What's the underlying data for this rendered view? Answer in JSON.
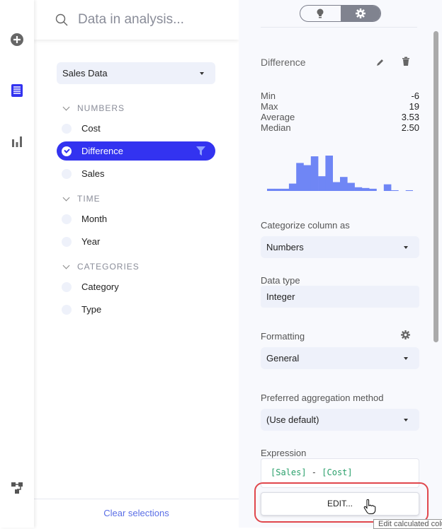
{
  "search": {
    "placeholder": "Data in analysis..."
  },
  "source": {
    "selected": "Sales Data"
  },
  "groups": [
    {
      "label": "NUMBERS",
      "items": [
        "Cost",
        "Difference",
        "Sales"
      ]
    },
    {
      "label": "TIME",
      "items": [
        "Month",
        "Year"
      ]
    },
    {
      "label": "CATEGORIES",
      "items": [
        "Category",
        "Type"
      ]
    }
  ],
  "selected_item": "Difference",
  "clear_label": "Clear selections",
  "details": {
    "title": "Difference",
    "stats": [
      {
        "label": "Min",
        "value": "-6"
      },
      {
        "label": "Max",
        "value": "19"
      },
      {
        "label": "Average",
        "value": "3.53"
      },
      {
        "label": "Median",
        "value": "2.50"
      }
    ],
    "histogram_relative_counts": [
      3,
      3,
      3,
      10,
      38,
      35,
      47,
      20,
      48,
      12,
      19,
      11,
      5,
      4,
      3,
      0,
      9,
      1,
      0,
      1
    ],
    "categorize_label": "Categorize column as",
    "categorize_value": "Numbers",
    "datatype_label": "Data type",
    "datatype_value": "Integer",
    "formatting_label": "Formatting",
    "formatting_value": "General",
    "aggregation_label": "Preferred aggregation method",
    "aggregation_value": "(Use default)",
    "expression_label": "Expression",
    "expression": {
      "col1": "[Sales]",
      "op": " - ",
      "col2": "[Cost]"
    },
    "edit_label": "EDIT...",
    "tooltip": "Edit calculated column"
  },
  "colors": {
    "accent": "#3333f0",
    "histogram": "#6f86f5",
    "highlight": "#e0474c",
    "expression": "#2aa06b"
  }
}
